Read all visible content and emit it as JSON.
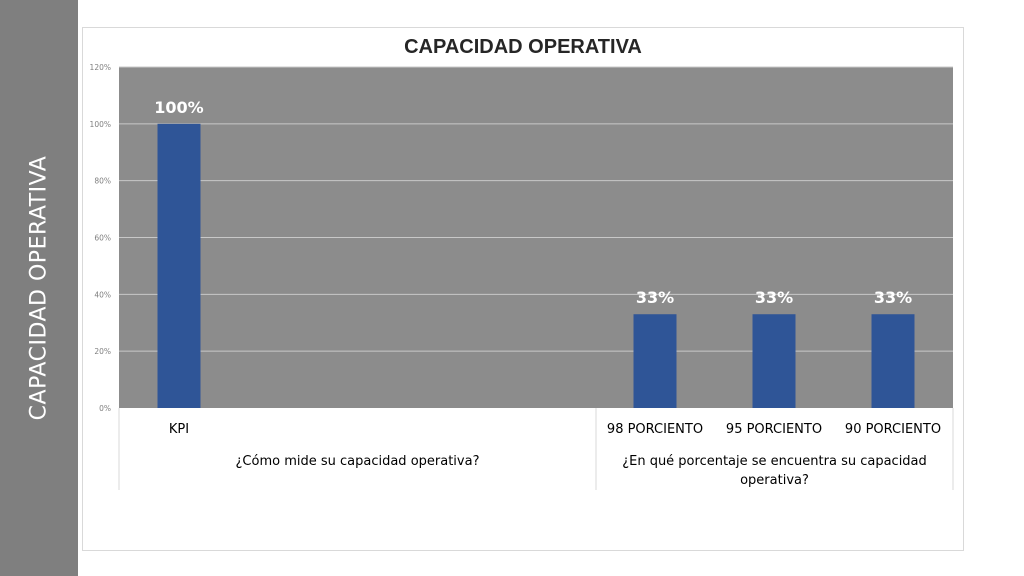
{
  "slide": {
    "side_title": "CAPACIDAD OPERATIVA"
  },
  "colors": {
    "sidebar": "#7f7f7f",
    "plot_background": "#8c8c8c",
    "bar": "#2f5597",
    "gridline": "#c8c8c8"
  },
  "chart_data": {
    "type": "bar",
    "title": "CAPACIDAD OPERATIVA",
    "xlabel": "",
    "ylabel": "",
    "categories": [
      "KPI",
      "98 PORCIENTO",
      "95 PORCIENTO",
      "90 PORCIENTO"
    ],
    "category_groups": [
      {
        "label": "¿Cómo mide su capacidad operativa?",
        "categories": [
          "KPI"
        ]
      },
      {
        "label": "¿En qué porcentaje se encuentra su capacidad operativa?",
        "categories": [
          "98 PORCIENTO",
          "95 PORCIENTO",
          "90 PORCIENTO"
        ]
      }
    ],
    "values": [
      1.0,
      0.33,
      0.33,
      0.33
    ],
    "data_labels": [
      "100%",
      "33%",
      "33%",
      "33%"
    ],
    "y_ticks": [
      "0%",
      "20%",
      "40%",
      "60%",
      "80%",
      "100%",
      "120%"
    ],
    "ylim": [
      0,
      1.2
    ],
    "grid": true,
    "legend": "none"
  }
}
